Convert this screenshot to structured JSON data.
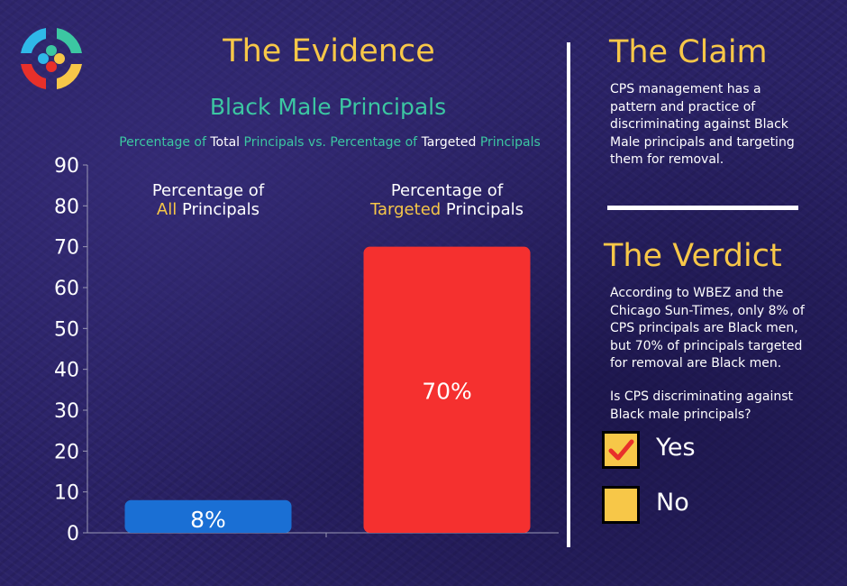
{
  "evidence": {
    "title": "The Evidence",
    "chart_title": "Black Male Principals",
    "subtitle_parts": [
      {
        "text": "Percentage of ",
        "color": "teal"
      },
      {
        "text": "Total",
        "color": "white"
      },
      {
        "text": " Principals vs. Percentage of ",
        "color": "teal"
      },
      {
        "text": "Targeted",
        "color": "white"
      },
      {
        "text": " Principals",
        "color": "teal"
      }
    ]
  },
  "chart_data": {
    "type": "bar",
    "categories": [
      "Percentage of All Principals",
      "Percentage of Targeted Principals"
    ],
    "category_labels": [
      {
        "line1": "Percentage of",
        "highlight": "All",
        "rest": " Principals"
      },
      {
        "line1": "Percentage of",
        "highlight": "Targeted",
        "rest": " Principals"
      }
    ],
    "values": [
      8,
      70
    ],
    "data_labels": [
      "8%",
      "70%"
    ],
    "bar_colors": [
      "#1a6fd4",
      "#f5302f"
    ],
    "yticks": [
      0,
      10,
      20,
      30,
      40,
      50,
      60,
      70,
      80,
      90
    ],
    "ylim": [
      0,
      90
    ],
    "grid": false,
    "xlabel": "",
    "ylabel": ""
  },
  "claim": {
    "title": "The Claim",
    "text": "CPS management has a pattern and practice of discriminating against Black Male principals and targeting them for removal."
  },
  "verdict": {
    "title": "The Verdict",
    "text": "According to WBEZ and the Chicago Sun-Times, only 8% of CPS principals are Black men, but 70% of principals targeted for removal are Black men.",
    "question": "Is CPS discriminating against Black male principals?",
    "options": [
      {
        "label": "Yes",
        "checked": true
      },
      {
        "label": "No",
        "checked": false
      }
    ]
  },
  "colors": {
    "background": "#2a2266",
    "gold": "#f7c748",
    "teal": "#3cc7a2",
    "check": "#e8302a"
  },
  "icons": {
    "logo": "circular-logo-icon",
    "checkmark": "checkmark-icon"
  }
}
